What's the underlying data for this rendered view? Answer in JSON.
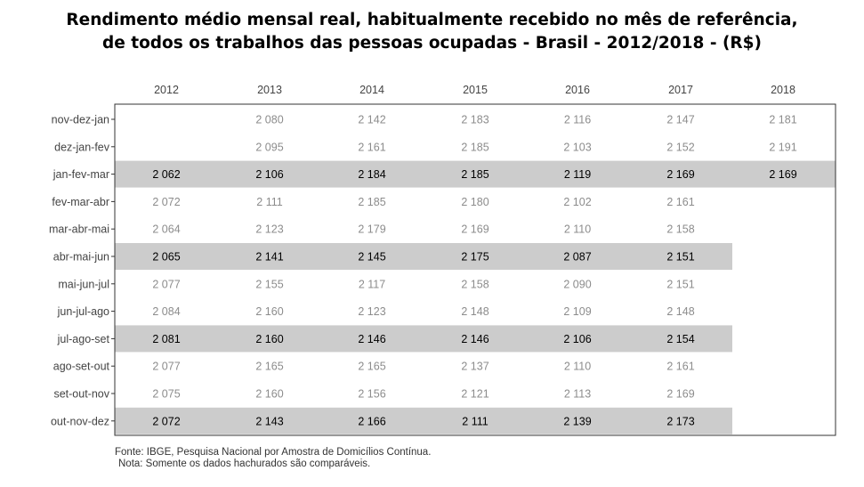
{
  "chart_data": {
    "type": "table",
    "title_line1": "Rendimento médio mensal real, habitualmente recebido no mês de referência,",
    "title_line2": "de todos os trabalhos das pessoas ocupadas - Brasil - 2012/2018 - (R$)",
    "columns": [
      "2012",
      "2013",
      "2014",
      "2015",
      "2016",
      "2017",
      "2018"
    ],
    "rows": [
      {
        "label": "nov-dez-jan",
        "highlight": false,
        "values": [
          null,
          "2 080",
          "2 142",
          "2 183",
          "2 116",
          "2 147",
          "2 181"
        ]
      },
      {
        "label": "dez-jan-fev",
        "highlight": false,
        "values": [
          null,
          "2 095",
          "2 161",
          "2 185",
          "2 103",
          "2 152",
          "2 191"
        ]
      },
      {
        "label": "jan-fev-mar",
        "highlight": true,
        "values": [
          "2 062",
          "2 106",
          "2 184",
          "2 185",
          "2 119",
          "2 169",
          "2 169"
        ]
      },
      {
        "label": "fev-mar-abr",
        "highlight": false,
        "values": [
          "2 072",
          "2 111",
          "2 185",
          "2 180",
          "2 102",
          "2 161",
          null
        ]
      },
      {
        "label": "mar-abr-mai",
        "highlight": false,
        "values": [
          "2 064",
          "2 123",
          "2 179",
          "2 169",
          "2 110",
          "2 158",
          null
        ]
      },
      {
        "label": "abr-mai-jun",
        "highlight": true,
        "values": [
          "2 065",
          "2 141",
          "2 145",
          "2 175",
          "2 087",
          "2 151",
          null
        ]
      },
      {
        "label": "mai-jun-jul",
        "highlight": false,
        "values": [
          "2 077",
          "2 155",
          "2 117",
          "2 158",
          "2 090",
          "2 151",
          null
        ]
      },
      {
        "label": "jun-jul-ago",
        "highlight": false,
        "values": [
          "2 084",
          "2 160",
          "2 123",
          "2 148",
          "2 109",
          "2 148",
          null
        ]
      },
      {
        "label": "jul-ago-set",
        "highlight": true,
        "values": [
          "2 081",
          "2 160",
          "2 146",
          "2 146",
          "2 106",
          "2 154",
          null
        ]
      },
      {
        "label": "ago-set-out",
        "highlight": false,
        "values": [
          "2 077",
          "2 165",
          "2 165",
          "2 137",
          "2 110",
          "2 161",
          null
        ]
      },
      {
        "label": "set-out-nov",
        "highlight": false,
        "values": [
          "2 075",
          "2 160",
          "2 156",
          "2 121",
          "2 113",
          "2 169",
          null
        ]
      },
      {
        "label": "out-nov-dez",
        "highlight": true,
        "values": [
          "2 072",
          "2 143",
          "2 166",
          "2 111",
          "2 139",
          "2 173",
          null
        ]
      }
    ],
    "colors": {
      "highlight_band": "#cccccc",
      "highlight_text": "#000000",
      "normal_text": "#8c8c8c",
      "label_text": "#444444",
      "border": "#333333"
    }
  },
  "footer": {
    "source": "Fonte: IBGE, Pesquisa Nacional por Amostra de Domicílios Contínua.",
    "note": "Nota: Somente os dados hachurados são comparáveis."
  }
}
